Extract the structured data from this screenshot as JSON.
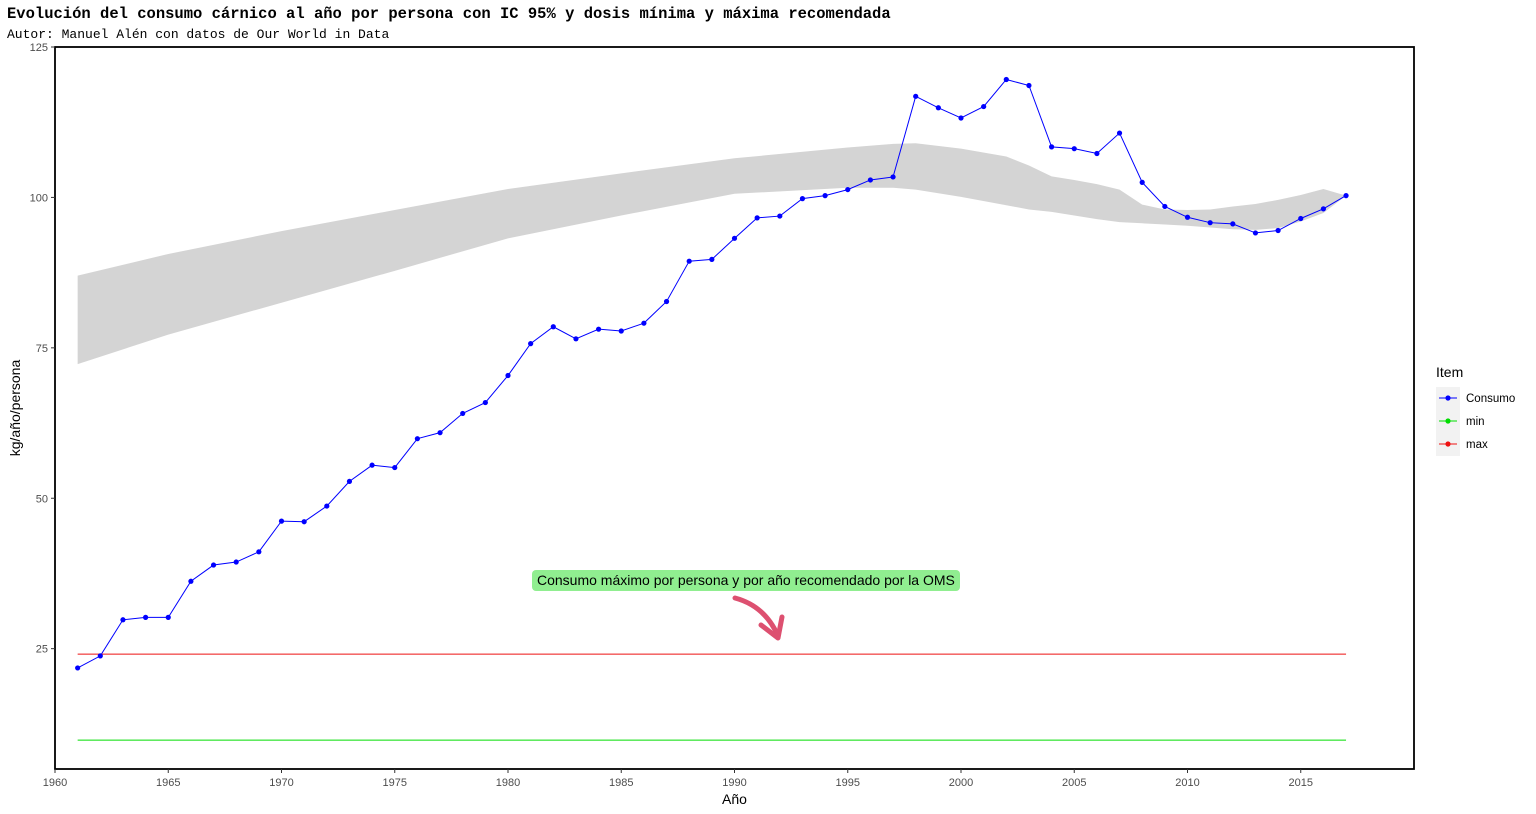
{
  "title": "Evolución del consumo cárnico al año por persona con IC 95% y dosis mínima y máxima recomendada",
  "subtitle": "Autor: Manuel Alén con datos de Our World in Data",
  "annotation": "Consumo máximo por persona y por año recomendado por la OMS",
  "colors": {
    "consumo": "#0000ff",
    "min": "#00dd00",
    "max": "#ee1111",
    "ribbon": "#d4d4d4",
    "arrow": "#dd5070",
    "annotation_bg": "#90ee90"
  },
  "chart_data": {
    "type": "line",
    "title": "Evolución del consumo cárnico al año por persona con IC 95% y dosis mínima y máxima recomendada",
    "xlabel": "Año",
    "ylabel": "kg/año/persona",
    "xlim": [
      1960,
      2020
    ],
    "ylim": [
      5,
      125
    ],
    "x_ticks": [
      1960,
      1965,
      1970,
      1975,
      1980,
      1985,
      1990,
      1995,
      2000,
      2005,
      2010,
      2015
    ],
    "y_ticks": [
      25,
      50,
      75,
      100,
      125
    ],
    "legend": {
      "title": "Item",
      "position": "right",
      "items": [
        "Consumo",
        "min",
        "max"
      ]
    },
    "grid": false,
    "x": [
      1961,
      1962,
      1963,
      1964,
      1965,
      1966,
      1967,
      1968,
      1969,
      1970,
      1971,
      1972,
      1973,
      1974,
      1975,
      1976,
      1977,
      1978,
      1979,
      1980,
      1981,
      1982,
      1983,
      1984,
      1985,
      1986,
      1987,
      1988,
      1989,
      1990,
      1991,
      1992,
      1993,
      1994,
      1995,
      1996,
      1997,
      1998,
      1999,
      2000,
      2001,
      2002,
      2003,
      2004,
      2005,
      2006,
      2007,
      2008,
      2009,
      2010,
      2011,
      2012,
      2013,
      2014,
      2015,
      2016,
      2017
    ],
    "series": [
      {
        "name": "Consumo",
        "values": [
          21.8,
          23.8,
          29.8,
          30.2,
          30.2,
          36.2,
          38.9,
          39.4,
          41.1,
          46.2,
          46.1,
          48.7,
          52.8,
          55.5,
          55.1,
          59.9,
          60.9,
          64.1,
          65.9,
          70.4,
          75.7,
          78.5,
          76.5,
          78.1,
          77.8,
          79.1,
          82.7,
          89.4,
          89.7,
          93.2,
          96.6,
          96.9,
          99.8,
          100.3,
          101.3,
          102.9,
          103.4,
          116.8,
          114.9,
          113.2,
          115.1,
          119.6,
          118.6,
          108.4,
          108.1,
          107.3,
          110.7,
          102.5,
          98.5,
          96.7,
          95.8,
          95.6,
          94.1,
          94.5,
          96.5,
          98.1,
          100.3
        ]
      },
      {
        "name": "min",
        "values": [
          9.8,
          9.8,
          9.8,
          9.8,
          9.8,
          9.8,
          9.8,
          9.8,
          9.8,
          9.8,
          9.8,
          9.8,
          9.8,
          9.8,
          9.8,
          9.8,
          9.8,
          9.8,
          9.8,
          9.8,
          9.8,
          9.8,
          9.8,
          9.8,
          9.8,
          9.8,
          9.8,
          9.8,
          9.8,
          9.8,
          9.8,
          9.8,
          9.8,
          9.8,
          9.8,
          9.8,
          9.8,
          9.8,
          9.8,
          9.8,
          9.8,
          9.8,
          9.8,
          9.8,
          9.8,
          9.8,
          9.8,
          9.8,
          9.8,
          9.8,
          9.8,
          9.8,
          9.8,
          9.8,
          9.8,
          9.8,
          9.8
        ]
      },
      {
        "name": "max",
        "values": [
          24.1,
          24.1,
          24.1,
          24.1,
          24.1,
          24.1,
          24.1,
          24.1,
          24.1,
          24.1,
          24.1,
          24.1,
          24.1,
          24.1,
          24.1,
          24.1,
          24.1,
          24.1,
          24.1,
          24.1,
          24.1,
          24.1,
          24.1,
          24.1,
          24.1,
          24.1,
          24.1,
          24.1,
          24.1,
          24.1,
          24.1,
          24.1,
          24.1,
          24.1,
          24.1,
          24.1,
          24.1,
          24.1,
          24.1,
          24.1,
          24.1,
          24.1,
          24.1,
          24.1,
          24.1,
          24.1,
          24.1,
          24.1,
          24.1,
          24.1,
          24.1,
          24.1,
          24.1,
          24.1,
          24.1,
          24.1,
          24.1
        ]
      }
    ],
    "ribbon": {
      "x": [
        1961,
        1965,
        1970,
        1975,
        1980,
        1985,
        1990,
        1995,
        1997,
        1998,
        2000,
        2002,
        2003,
        2004,
        2005,
        2006,
        2007,
        2008,
        2009,
        2010,
        2011,
        2012,
        2013,
        2014,
        2015,
        2016,
        2017
      ],
      "lower": [
        72.3,
        77.2,
        82.5,
        87.8,
        93.2,
        97.0,
        100.6,
        101.6,
        101.6,
        101.3,
        100.1,
        98.7,
        98.0,
        97.6,
        97.0,
        96.4,
        95.9,
        95.7,
        95.5,
        95.3,
        95.0,
        94.7,
        94.6,
        94.9,
        96.0,
        97.4,
        100.3
      ],
      "upper": [
        87.0,
        90.6,
        94.4,
        97.9,
        101.4,
        104.0,
        106.5,
        108.3,
        108.9,
        109.0,
        108.1,
        106.8,
        105.3,
        103.5,
        102.9,
        102.2,
        101.3,
        98.8,
        98.0,
        97.9,
        98.0,
        98.5,
        98.9,
        99.6,
        100.4,
        101.4,
        100.3
      ]
    }
  }
}
